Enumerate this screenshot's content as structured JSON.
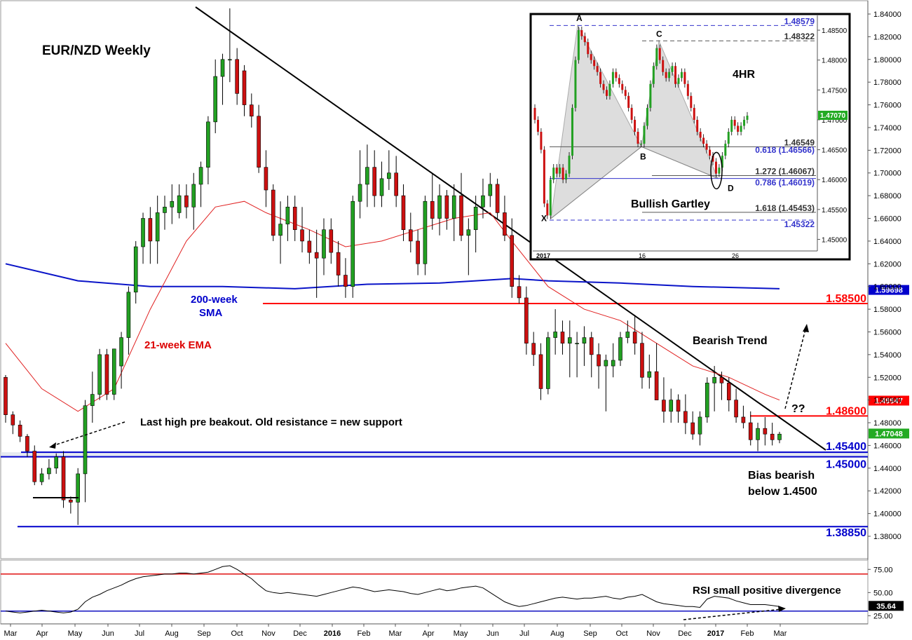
{
  "chart_data": [
    {
      "type": "candlestick",
      "title": "EUR/NZD Weekly",
      "ylim": [
        1.36,
        1.85
      ],
      "x_ticks": [
        "Mar",
        "Apr",
        "May",
        "Jun",
        "Jul",
        "Aug",
        "Sep",
        "Oct",
        "Nov",
        "Dec",
        "2016",
        "Feb",
        "Mar",
        "Apr",
        "May",
        "Jun",
        "Jul",
        "Aug",
        "Sep",
        "Oct",
        "Nov",
        "Dec",
        "2017",
        "Feb",
        "Mar"
      ],
      "y_ticks": [
        "1.84000",
        "1.82000",
        "1.80000",
        "1.78000",
        "1.76000",
        "1.74000",
        "1.72000",
        "1.70000",
        "1.68000",
        "1.66000",
        "1.64000",
        "1.62000",
        "1.60000",
        "1.58000",
        "1.56000",
        "1.54000",
        "1.52000",
        "1.50000",
        "1.48000",
        "1.46000",
        "1.44000",
        "1.42000",
        "1.40000",
        "1.38000"
      ],
      "candles": [
        [
          1.52,
          1.522,
          1.48,
          1.487
        ],
        [
          1.487,
          1.49,
          1.47,
          1.478
        ],
        [
          1.478,
          1.482,
          1.463,
          1.468
        ],
        [
          1.468,
          1.47,
          1.45,
          1.455
        ],
        [
          1.455,
          1.46,
          1.425,
          1.428
        ],
        [
          1.428,
          1.44,
          1.425,
          1.435
        ],
        [
          1.435,
          1.448,
          1.43,
          1.44
        ],
        [
          1.44,
          1.453,
          1.435,
          1.45
        ],
        [
          1.45,
          1.455,
          1.405,
          1.412
        ],
        [
          1.412,
          1.415,
          1.4,
          1.41
        ],
        [
          1.41,
          1.44,
          1.39,
          1.435
        ],
        [
          1.435,
          1.5,
          1.41,
          1.495
        ],
        [
          1.495,
          1.525,
          1.48,
          1.505
        ],
        [
          1.505,
          1.545,
          1.5,
          1.54
        ],
        [
          1.54,
          1.545,
          1.5,
          1.505
        ],
        [
          1.505,
          1.545,
          1.5,
          1.545
        ],
        [
          1.53,
          1.56,
          1.51,
          1.555
        ],
        [
          1.555,
          1.6,
          1.54,
          1.595
        ],
        [
          1.595,
          1.64,
          1.585,
          1.635
        ],
        [
          1.635,
          1.665,
          1.62,
          1.66
        ],
        [
          1.66,
          1.67,
          1.62,
          1.64
        ],
        [
          1.64,
          1.68,
          1.62,
          1.665
        ],
        [
          1.665,
          1.68,
          1.65,
          1.67
        ],
        [
          1.67,
          1.69,
          1.655,
          1.675
        ],
        [
          1.665,
          1.69,
          1.66,
          1.68
        ],
        [
          1.68,
          1.69,
          1.66,
          1.67
        ],
        [
          1.67,
          1.7,
          1.65,
          1.69
        ],
        [
          1.69,
          1.71,
          1.67,
          1.705
        ],
        [
          1.705,
          1.75,
          1.69,
          1.745
        ],
        [
          1.745,
          1.8,
          1.735,
          1.785
        ],
        [
          1.785,
          1.805,
          1.76,
          1.8
        ],
        [
          1.8,
          1.845,
          1.78,
          1.8
        ],
        [
          1.8,
          1.81,
          1.76,
          1.77
        ],
        [
          1.79,
          1.795,
          1.75,
          1.76
        ],
        [
          1.76,
          1.77,
          1.74,
          1.75
        ],
        [
          1.75,
          1.76,
          1.7,
          1.705
        ],
        [
          1.705,
          1.72,
          1.67,
          1.685
        ],
        [
          1.685,
          1.69,
          1.64,
          1.645
        ],
        [
          1.645,
          1.675,
          1.62,
          1.655
        ],
        [
          1.655,
          1.68,
          1.64,
          1.67
        ],
        [
          1.67,
          1.68,
          1.64,
          1.65
        ],
        [
          1.65,
          1.67,
          1.63,
          1.64
        ],
        [
          1.64,
          1.65,
          1.62,
          1.63
        ],
        [
          1.63,
          1.65,
          1.59,
          1.625
        ],
        [
          1.625,
          1.66,
          1.61,
          1.65
        ],
        [
          1.65,
          1.66,
          1.62,
          1.63
        ],
        [
          1.63,
          1.64,
          1.6,
          1.61
        ],
        [
          1.61,
          1.625,
          1.59,
          1.6
        ],
        [
          1.6,
          1.68,
          1.59,
          1.675
        ],
        [
          1.675,
          1.72,
          1.66,
          1.69
        ],
        [
          1.69,
          1.725,
          1.67,
          1.705
        ],
        [
          1.705,
          1.72,
          1.67,
          1.68
        ],
        [
          1.68,
          1.71,
          1.67,
          1.695
        ],
        [
          1.695,
          1.72,
          1.685,
          1.7
        ],
        [
          1.7,
          1.715,
          1.67,
          1.68
        ],
        [
          1.68,
          1.69,
          1.64,
          1.65
        ],
        [
          1.65,
          1.665,
          1.63,
          1.64
        ],
        [
          1.64,
          1.65,
          1.61,
          1.62
        ],
        [
          1.62,
          1.68,
          1.61,
          1.675
        ],
        [
          1.675,
          1.7,
          1.65,
          1.66
        ],
        [
          1.66,
          1.69,
          1.645,
          1.68
        ],
        [
          1.68,
          1.685,
          1.65,
          1.66
        ],
        [
          1.66,
          1.69,
          1.64,
          1.68
        ],
        [
          1.68,
          1.7,
          1.64,
          1.645
        ],
        [
          1.645,
          1.66,
          1.61,
          1.65
        ],
        [
          1.65,
          1.68,
          1.63,
          1.67
        ],
        [
          1.67,
          1.695,
          1.66,
          1.68
        ],
        [
          1.68,
          1.7,
          1.67,
          1.69
        ],
        [
          1.69,
          1.695,
          1.66,
          1.665
        ],
        [
          1.665,
          1.68,
          1.64,
          1.645
        ],
        [
          1.645,
          1.66,
          1.59,
          1.6
        ],
        [
          1.6,
          1.61,
          1.585,
          1.59
        ],
        [
          1.59,
          1.6,
          1.54,
          1.55
        ],
        [
          1.55,
          1.56,
          1.53,
          1.54
        ],
        [
          1.54,
          1.55,
          1.5,
          1.51
        ],
        [
          1.51,
          1.56,
          1.505,
          1.555
        ],
        [
          1.555,
          1.58,
          1.54,
          1.56
        ],
        [
          1.56,
          1.57,
          1.54,
          1.55
        ],
        [
          1.55,
          1.57,
          1.52,
          1.555
        ],
        [
          1.55,
          1.56,
          1.52,
          1.55
        ],
        [
          1.55,
          1.565,
          1.53,
          1.555
        ],
        [
          1.555,
          1.56,
          1.52,
          1.54
        ],
        [
          1.54,
          1.55,
          1.51,
          1.53
        ],
        [
          1.53,
          1.54,
          1.49,
          1.535
        ],
        [
          1.53,
          1.55,
          1.52,
          1.535
        ],
        [
          1.535,
          1.56,
          1.53,
          1.555
        ],
        [
          1.555,
          1.57,
          1.55,
          1.56
        ],
        [
          1.56,
          1.575,
          1.54,
          1.55
        ],
        [
          1.55,
          1.56,
          1.51,
          1.52
        ],
        [
          1.52,
          1.54,
          1.51,
          1.525
        ],
        [
          1.525,
          1.55,
          1.5,
          1.5
        ],
        [
          1.5,
          1.52,
          1.48,
          1.49
        ],
        [
          1.49,
          1.51,
          1.48,
          1.5
        ],
        [
          1.5,
          1.505,
          1.48,
          1.49
        ],
        [
          1.49,
          1.505,
          1.47,
          1.48
        ],
        [
          1.48,
          1.49,
          1.465,
          1.47
        ],
        [
          1.47,
          1.49,
          1.46,
          1.485
        ],
        [
          1.485,
          1.52,
          1.48,
          1.515
        ],
        [
          1.515,
          1.53,
          1.49,
          1.52
        ],
        [
          1.52,
          1.525,
          1.5,
          1.515
        ],
        [
          1.515,
          1.52,
          1.49,
          1.5
        ],
        [
          1.5,
          1.51,
          1.48,
          1.485
        ],
        [
          1.485,
          1.495,
          1.475,
          1.48
        ],
        [
          1.48,
          1.49,
          1.46,
          1.465
        ],
        [
          1.465,
          1.48,
          1.455,
          1.475
        ],
        [
          1.475,
          1.485,
          1.46,
          1.47
        ],
        [
          1.47,
          1.48,
          1.46,
          1.465
        ],
        [
          1.465,
          1.472,
          1.462,
          1.47
        ]
      ],
      "ema21": [
        [
          0,
          1.55
        ],
        [
          5,
          1.51
        ],
        [
          10,
          1.49
        ],
        [
          15,
          1.51
        ],
        [
          20,
          1.58
        ],
        [
          25,
          1.64
        ],
        [
          29,
          1.67
        ],
        [
          33,
          1.675
        ],
        [
          36,
          1.665
        ],
        [
          42,
          1.65
        ],
        [
          47,
          1.635
        ],
        [
          52,
          1.64
        ],
        [
          57,
          1.65
        ],
        [
          62,
          1.66
        ],
        [
          67,
          1.665
        ],
        [
          70,
          1.64
        ],
        [
          75,
          1.6
        ],
        [
          80,
          1.58
        ],
        [
          85,
          1.57
        ],
        [
          90,
          1.55
        ],
        [
          95,
          1.53
        ],
        [
          100,
          1.52
        ],
        [
          105,
          1.505
        ],
        [
          107,
          1.5
        ]
      ],
      "sma200": [
        [
          0,
          1.62
        ],
        [
          10,
          1.605
        ],
        [
          20,
          1.6
        ],
        [
          30,
          1.6
        ],
        [
          40,
          1.598
        ],
        [
          50,
          1.602
        ],
        [
          60,
          1.603
        ],
        [
          65,
          1.605
        ],
        [
          70,
          1.607
        ],
        [
          75,
          1.605
        ],
        [
          85,
          1.603
        ],
        [
          95,
          1.6
        ],
        [
          107,
          1.598
        ]
      ],
      "h_lines": [
        {
          "value": 1.585,
          "color": "#ff0000"
        },
        {
          "value": 1.486,
          "color": "#ff0000"
        },
        {
          "value": 1.454,
          "color": "#0000cc"
        },
        {
          "value": 1.45,
          "color": "#0000cc"
        },
        {
          "value": 1.3885,
          "color": "#0000cc"
        }
      ],
      "level_labels": [
        "1.58500",
        "1.48600",
        "1.45400",
        "1.45000",
        "1.38850"
      ],
      "price_tags": [
        {
          "text": "1.59698",
          "value": 1.59698,
          "color": "#0000cc"
        },
        {
          "text": "1.49947",
          "value": 1.49947,
          "color": "#ff0000"
        },
        {
          "text": "1.47048",
          "value": 1.47048,
          "color": "#22aa22"
        }
      ],
      "annotations": {
        "sma_label_1": "200-week",
        "sma_label_2": "SMA",
        "ema_label": "21-week EMA",
        "support_note": "Last high pre beakout. Old resistance = new support",
        "trend_label": "Bearish Trend",
        "question": "??",
        "bias_1": "Bias bearish",
        "bias_2": "below 1.4500"
      }
    },
    {
      "type": "line",
      "title": "RSI",
      "ylim": [
        20,
        82
      ],
      "levels": [
        70,
        30
      ],
      "y_ticks": [
        "75.00",
        "50.00",
        "25.00"
      ],
      "current": "35.64",
      "values": [
        30,
        29,
        28,
        29,
        30,
        31,
        30,
        29,
        28,
        29,
        32,
        40,
        45,
        48,
        52,
        55,
        58,
        62,
        65,
        67,
        68,
        69,
        70,
        70,
        71,
        71,
        70,
        71,
        72,
        75,
        78,
        79,
        75,
        70,
        65,
        58,
        52,
        50,
        49,
        50,
        49,
        48,
        47,
        46,
        48,
        50,
        52,
        54,
        56,
        55,
        53,
        51,
        52,
        53,
        52,
        51,
        49,
        48,
        50,
        52,
        54,
        52,
        53,
        55,
        56,
        57,
        55,
        50,
        45,
        40,
        37,
        35,
        36,
        38,
        40,
        42,
        44,
        45,
        44,
        43,
        44,
        44,
        45,
        46,
        44,
        43,
        45,
        46,
        48,
        44,
        40,
        38,
        37,
        36,
        35,
        35,
        34,
        43,
        46,
        45,
        44,
        41,
        39,
        37,
        37,
        37,
        36,
        35
      ]
    }
  ],
  "inset": {
    "title": "4HR",
    "pattern_label": "Bullish Gartley",
    "x_ticks": [
      "2017",
      "16",
      "26"
    ],
    "y_ticks": [
      "1.48500",
      "1.48000",
      "1.47500",
      "1.47000",
      "1.46500",
      "1.46000",
      "1.45500",
      "1.45000"
    ],
    "points": [
      {
        "name": "X",
        "value": 1.4535
      },
      {
        "name": "A",
        "value": 1.4858
      },
      {
        "name": "B",
        "value": 1.4655
      },
      {
        "name": "C",
        "value": 1.4832
      },
      {
        "name": "D",
        "value": 1.4602
      }
    ],
    "levels": [
      {
        "text": "1.48579",
        "value": 1.48579,
        "color": "#3333cc"
      },
      {
        "text": "1.48322",
        "value": 1.48322,
        "color": "#333333"
      },
      {
        "text": "1.46549",
        "value": 1.46549,
        "color": "#333333"
      },
      {
        "text": "0.618 (1.46566)",
        "value": 1.46566,
        "color": "#3333cc"
      },
      {
        "text": "1.272 (1.46067)",
        "value": 1.46067,
        "color": "#333333"
      },
      {
        "text": "0.786 (1.46019)",
        "value": 1.46019,
        "color": "#3333cc"
      },
      {
        "text": "1.618 (1.45453)",
        "value": 1.45453,
        "color": "#333333"
      },
      {
        "text": "1.45322",
        "value": 1.45322,
        "color": "#3333cc"
      }
    ],
    "price_tag": "1.47070"
  }
}
